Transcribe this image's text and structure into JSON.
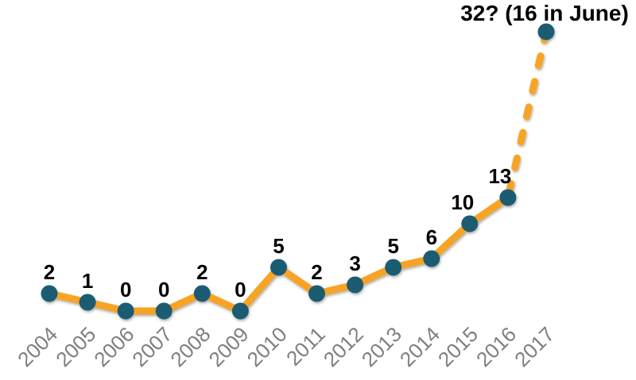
{
  "chart_data": {
    "type": "line",
    "title": "",
    "categories": [
      "2004",
      "2005",
      "2006",
      "2007",
      "2008",
      "2009",
      "2010",
      "2011",
      "2012",
      "2013",
      "2014",
      "2015",
      "2016",
      "2017"
    ],
    "series": [
      {
        "name": "",
        "values": [
          2,
          1,
          0,
          0,
          2,
          0,
          5,
          2,
          3,
          5,
          6,
          10,
          13,
          32
        ]
      }
    ],
    "point_labels": [
      "2",
      "1",
      "0",
      "0",
      "2",
      "0",
      "5",
      "2",
      "3",
      "5",
      "6",
      "10",
      "13",
      ""
    ],
    "annotation": {
      "text": "32? (16 in June)",
      "anchor_category": "2017"
    },
    "projection": {
      "from": "2016",
      "to": "2017",
      "style": "dashed"
    },
    "ylim": [
      0,
      32
    ],
    "grid": false,
    "axes_visible": false,
    "legend": "none",
    "label_dx_overrides": {
      "2015": -9,
      "2016": -10
    },
    "colors": {
      "line": "#F7A428",
      "marker": "#1D5B73",
      "point_label": "#000000",
      "tick_label": "#7F7F7F",
      "background": "#FFFFFF"
    }
  }
}
